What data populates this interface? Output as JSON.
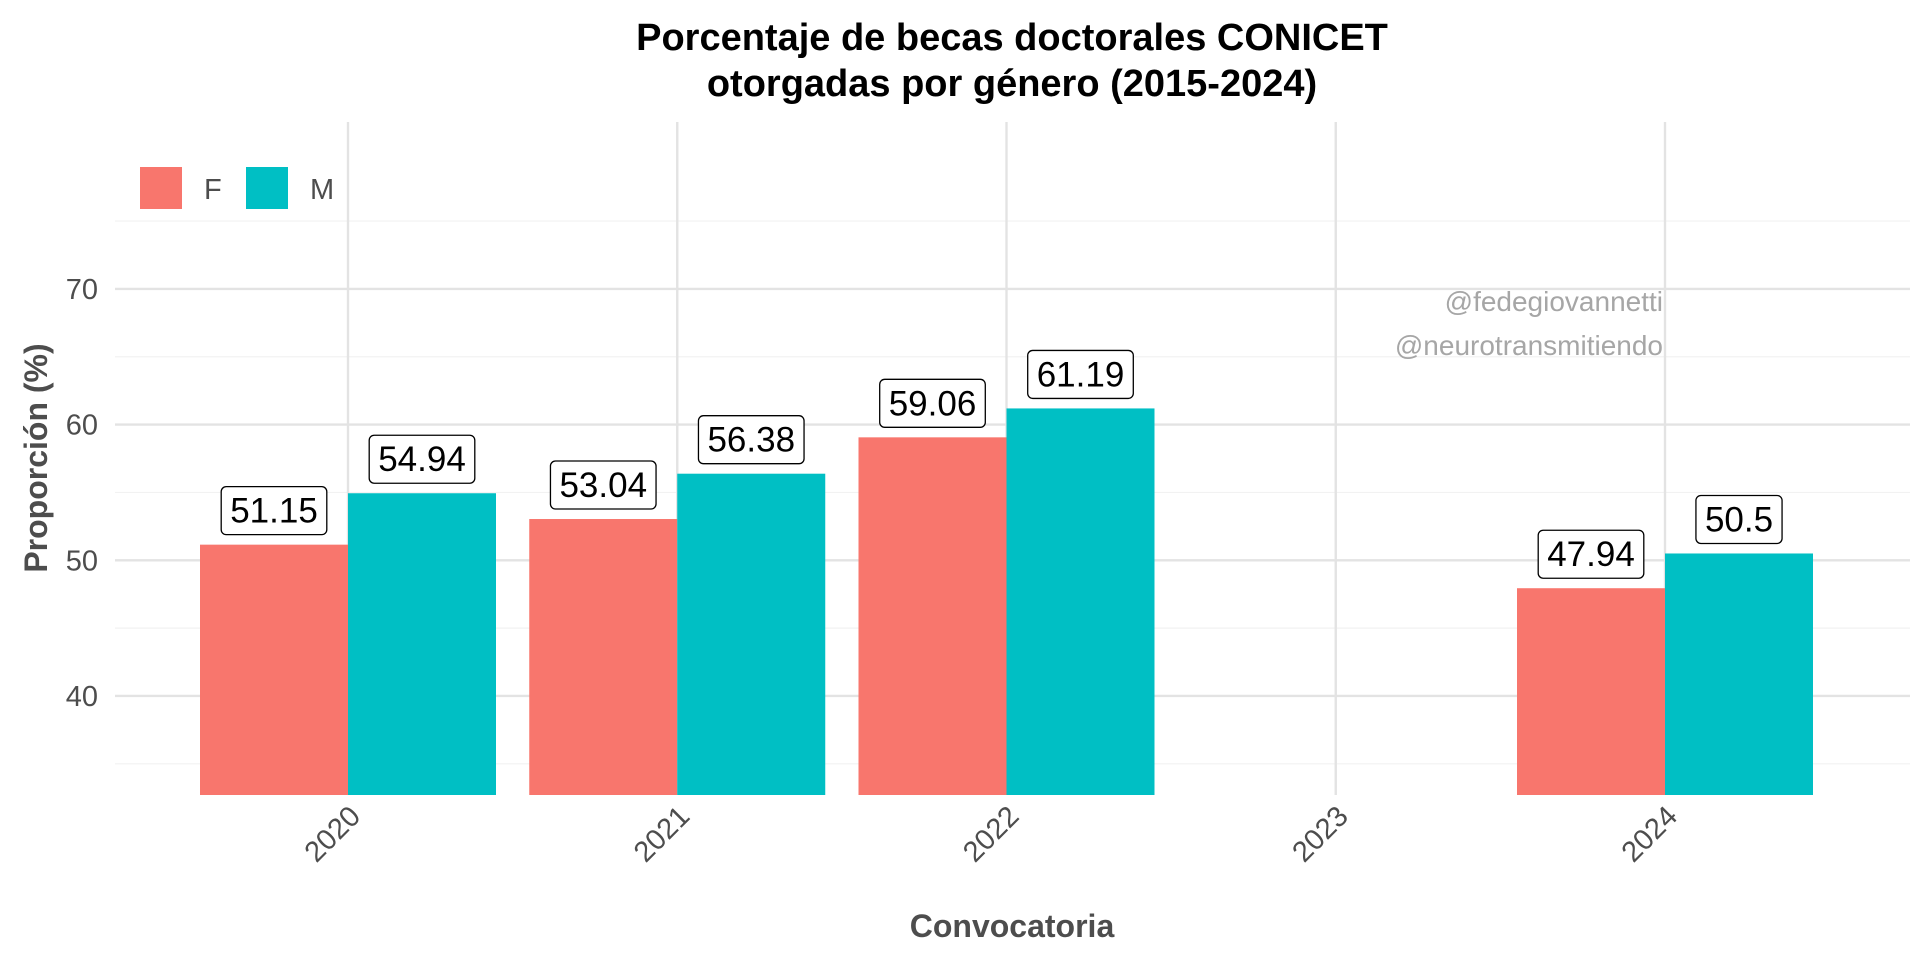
{
  "chart_data": {
    "type": "bar",
    "title_lines": [
      "Porcentaje de becas doctorales CONICET",
      "otorgadas por género (2015-2024)"
    ],
    "xlabel": "Convocatoria",
    "ylabel": "Proporción (%)",
    "categories": [
      "2020",
      "2021",
      "2022",
      "2023",
      "2024"
    ],
    "series": [
      {
        "name": "F",
        "color": "#F8766D",
        "values": [
          51.15,
          53.04,
          59.06,
          null,
          47.94
        ],
        "labels": [
          "51.15",
          "53.04",
          "59.06",
          "",
          "47.94"
        ]
      },
      {
        "name": "M",
        "color": "#00BFC4",
        "values": [
          54.94,
          56.38,
          61.19,
          null,
          50.5
        ],
        "labels": [
          "54.94",
          "56.38",
          "61.19",
          "",
          "50.5"
        ]
      }
    ],
    "ylim": [
      32.7,
      82.3
    ],
    "yticks": [
      40,
      50,
      60,
      70
    ],
    "grid": true,
    "legend_position": "top-left",
    "watermark": [
      "@fedegiovannetti",
      "@neurotransmitiendo"
    ]
  }
}
